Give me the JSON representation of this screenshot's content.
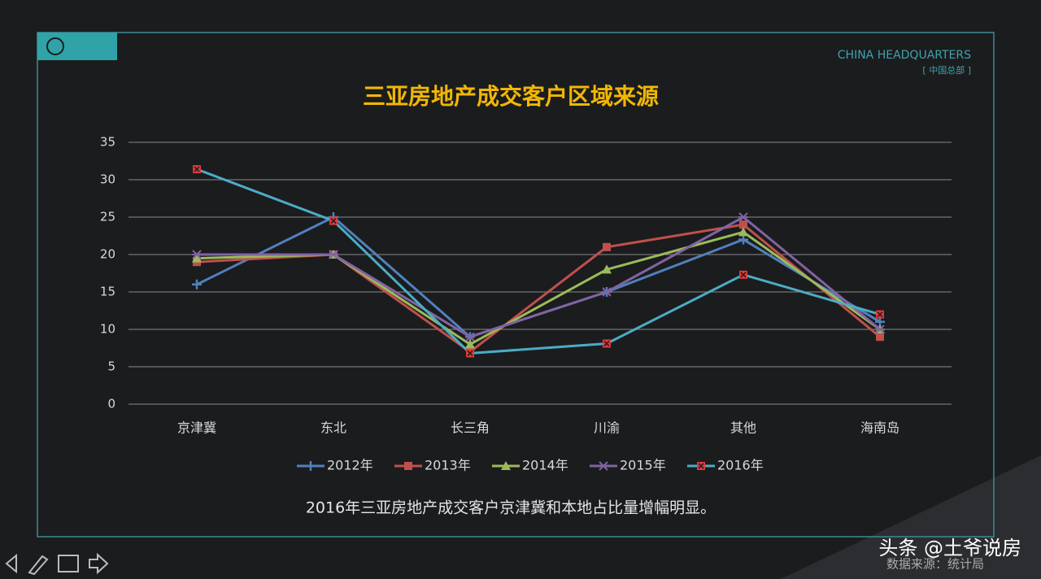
{
  "header": {
    "brand": "CHINA HEADQUARTERS",
    "brand_sub": "[ 中国总部 ]"
  },
  "chart_data": {
    "type": "line",
    "title": "三亚房地产成交客户区域来源",
    "categories": [
      "京津冀",
      "东北",
      "长三角",
      "川渝",
      "其他",
      "海南岛"
    ],
    "series": [
      {
        "name": "2012年",
        "color": "#4f81bd",
        "marker": "plus",
        "values": [
          16,
          25,
          9,
          15,
          22,
          11
        ]
      },
      {
        "name": "2013年",
        "color": "#c0504d",
        "marker": "square",
        "values": [
          19,
          20,
          7,
          21,
          24,
          9
        ]
      },
      {
        "name": "2014年",
        "color": "#9bbb59",
        "marker": "triangle",
        "values": [
          19.5,
          20,
          8,
          18,
          23,
          10
        ]
      },
      {
        "name": "2015年",
        "color": "#8064a2",
        "marker": "cross",
        "values": [
          20,
          20,
          9,
          15,
          25,
          10
        ]
      },
      {
        "name": "2016年",
        "color": "#4bacc6",
        "marker": "x-square",
        "marker_color": "#e03a3a",
        "values": [
          31.4,
          24.5,
          6.8,
          8.1,
          17.3,
          12
        ]
      }
    ],
    "ylim": [
      0,
      35
    ],
    "yticks": [
      0,
      5,
      10,
      15,
      20,
      25,
      30,
      35
    ],
    "grid": true,
    "legend": "bottom"
  },
  "caption": "2016年三亚房地产成交客户京津冀和本地占比量增幅明显。",
  "footer": {
    "watermark": "头条 @土爷说房",
    "source": "数据来源：统计局"
  }
}
